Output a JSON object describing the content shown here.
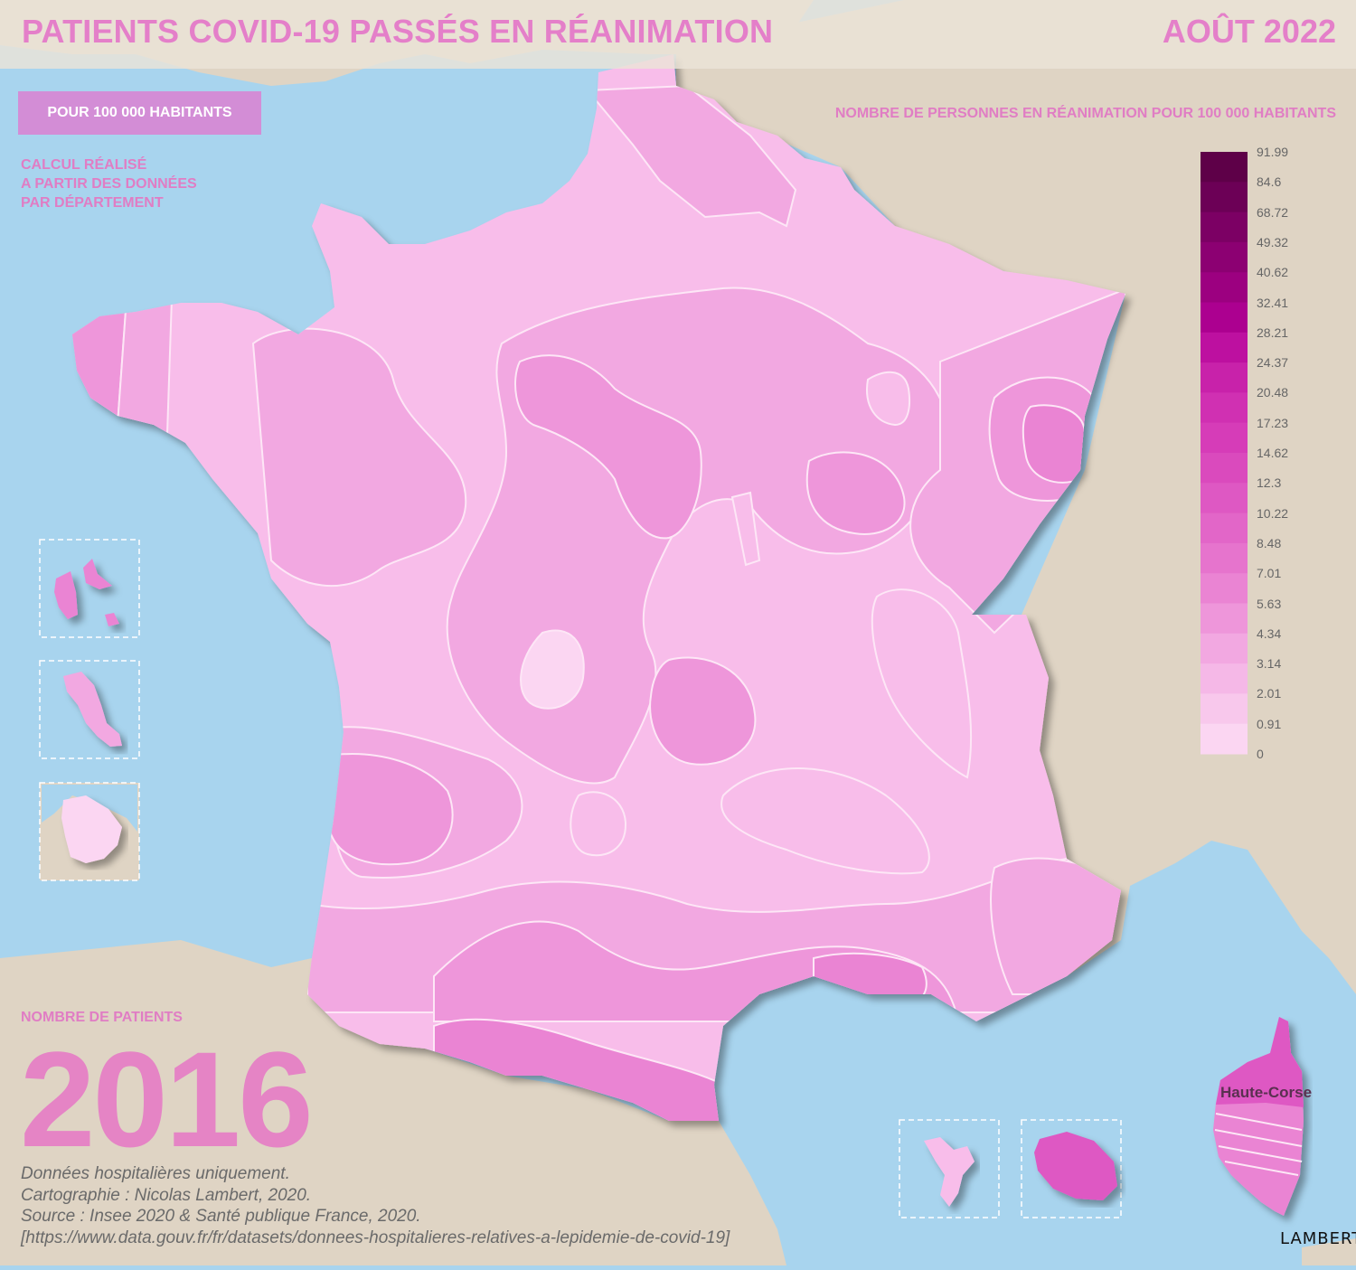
{
  "header": {
    "title": "PATIENTS COVID-19 PASSÉS EN RÉANIMATION",
    "date": "AOÛT 2022"
  },
  "indicator_button": "POUR 100 000 HABITANTS",
  "calc_note": [
    "CALCUL RÉALISÉ",
    "A PARTIR DES DONNÉES",
    "PAR DÉPARTEMENT"
  ],
  "legend": {
    "title": "NOMBRE DE PERSONNES EN RÉANIMATION POUR 100 000 HABITANTS",
    "breaks": [
      "91.99",
      "84.6",
      "68.72",
      "49.32",
      "40.62",
      "32.41",
      "28.21",
      "24.37",
      "20.48",
      "17.23",
      "14.62",
      "12.3",
      "10.22",
      "8.48",
      "7.01",
      "5.63",
      "4.34",
      "3.14",
      "2.01",
      "0.91",
      "0"
    ],
    "colors": [
      "#5e0048",
      "#6c0056",
      "#7c0064",
      "#8c0072",
      "#9c0080",
      "#ac0090",
      "#bd10a0",
      "#c822aa",
      "#d030b2",
      "#d63cb8",
      "#da4abd",
      "#de58c3",
      "#e266c8",
      "#e674cd",
      "#ea84d3",
      "#ee96da",
      "#f2a8e1",
      "#f5b8e7",
      "#f8c8ec",
      "#fbd6f2"
    ]
  },
  "total": {
    "label": "NOMBRE DE PATIENTS",
    "value": "2016"
  },
  "credits": [
    "Données hospitalières uniquement.",
    "Cartographie : Nicolas Lambert, 2020.",
    "Source : Insee 2020 & Santé publique France, 2020.",
    "[https://www.data.gouv.fr/fr/datasets/donnees-hospitalieres-relatives-a-lepidemie-de-covid-19]"
  ],
  "map_labels": {
    "corsica": "Haute-Corse"
  },
  "signature": "LAMBERT",
  "colors": {
    "sea": "#a8d4ee",
    "land": "#dfd4c4",
    "accent": "#e47fc9"
  }
}
